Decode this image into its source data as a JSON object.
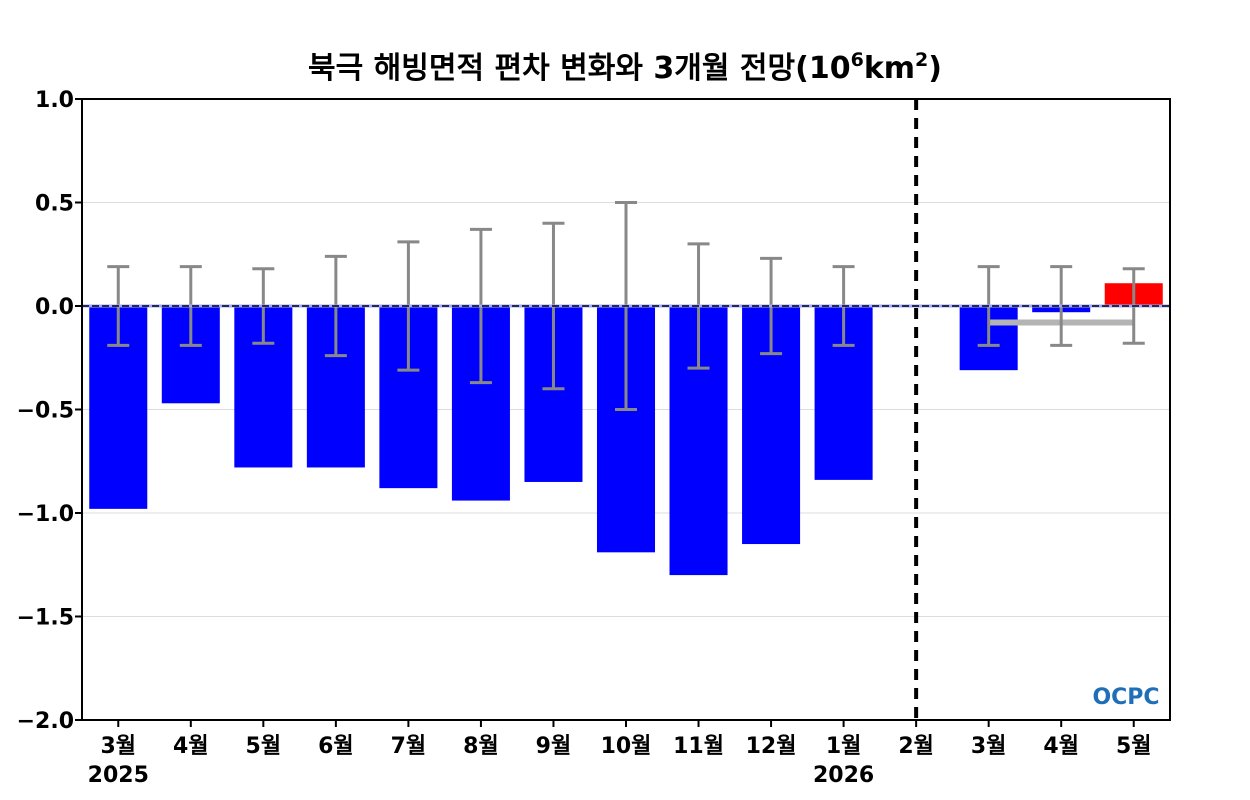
{
  "colors": {
    "negative_bar": "#0000ff",
    "positive_bar": "#ff0000",
    "error_bar": "#888888",
    "mean_line": "#b4b4b4",
    "grid": "#dddddd",
    "zero_line": "#000000",
    "logo": "#1f6fb8"
  },
  "logo": {
    "text": "OCPC"
  },
  "chart_data": {
    "type": "bar",
    "title": "북극 해빙면적 편차 변화와 3개월 전망(10",
    "title_superscript": "6",
    "title_unit": "km",
    "title_unit_superscript": "2",
    "title_close": ")",
    "categories": [
      "3월",
      "4월",
      "5월",
      "6월",
      "7월",
      "8월",
      "9월",
      "10월",
      "11월",
      "12월",
      "1월",
      "2월",
      "3월",
      "4월",
      "5월"
    ],
    "year_labels": [
      {
        "index": 0,
        "label": "2025"
      },
      {
        "index": 10,
        "label": "2026"
      }
    ],
    "values": [
      -0.98,
      -0.47,
      -0.78,
      -0.78,
      -0.88,
      -0.94,
      -0.85,
      -1.19,
      -1.3,
      -1.15,
      -0.84,
      0.0,
      -0.31,
      -0.03,
      0.11
    ],
    "error_bars": [
      0.19,
      0.19,
      0.18,
      0.24,
      0.31,
      0.37,
      0.4,
      0.5,
      0.3,
      0.23,
      0.19,
      null,
      0.19,
      0.19,
      0.18
    ],
    "forecast_start_index": 12,
    "forecast_divider_after_index": 11,
    "forecast_mean": {
      "from_index": 12,
      "to_index": 14,
      "value": -0.08
    },
    "ylim": [
      -2.0,
      1.0
    ],
    "yticks": [
      1.0,
      0.5,
      0.0,
      -0.5,
      -1.0,
      -1.5,
      -2.0
    ],
    "ytick_labels": [
      "1.0",
      "0.5",
      "0.0",
      "−0.5",
      "−1.0",
      "−1.5",
      "−2.0"
    ],
    "grid": true,
    "xlabel": "",
    "ylabel": ""
  }
}
